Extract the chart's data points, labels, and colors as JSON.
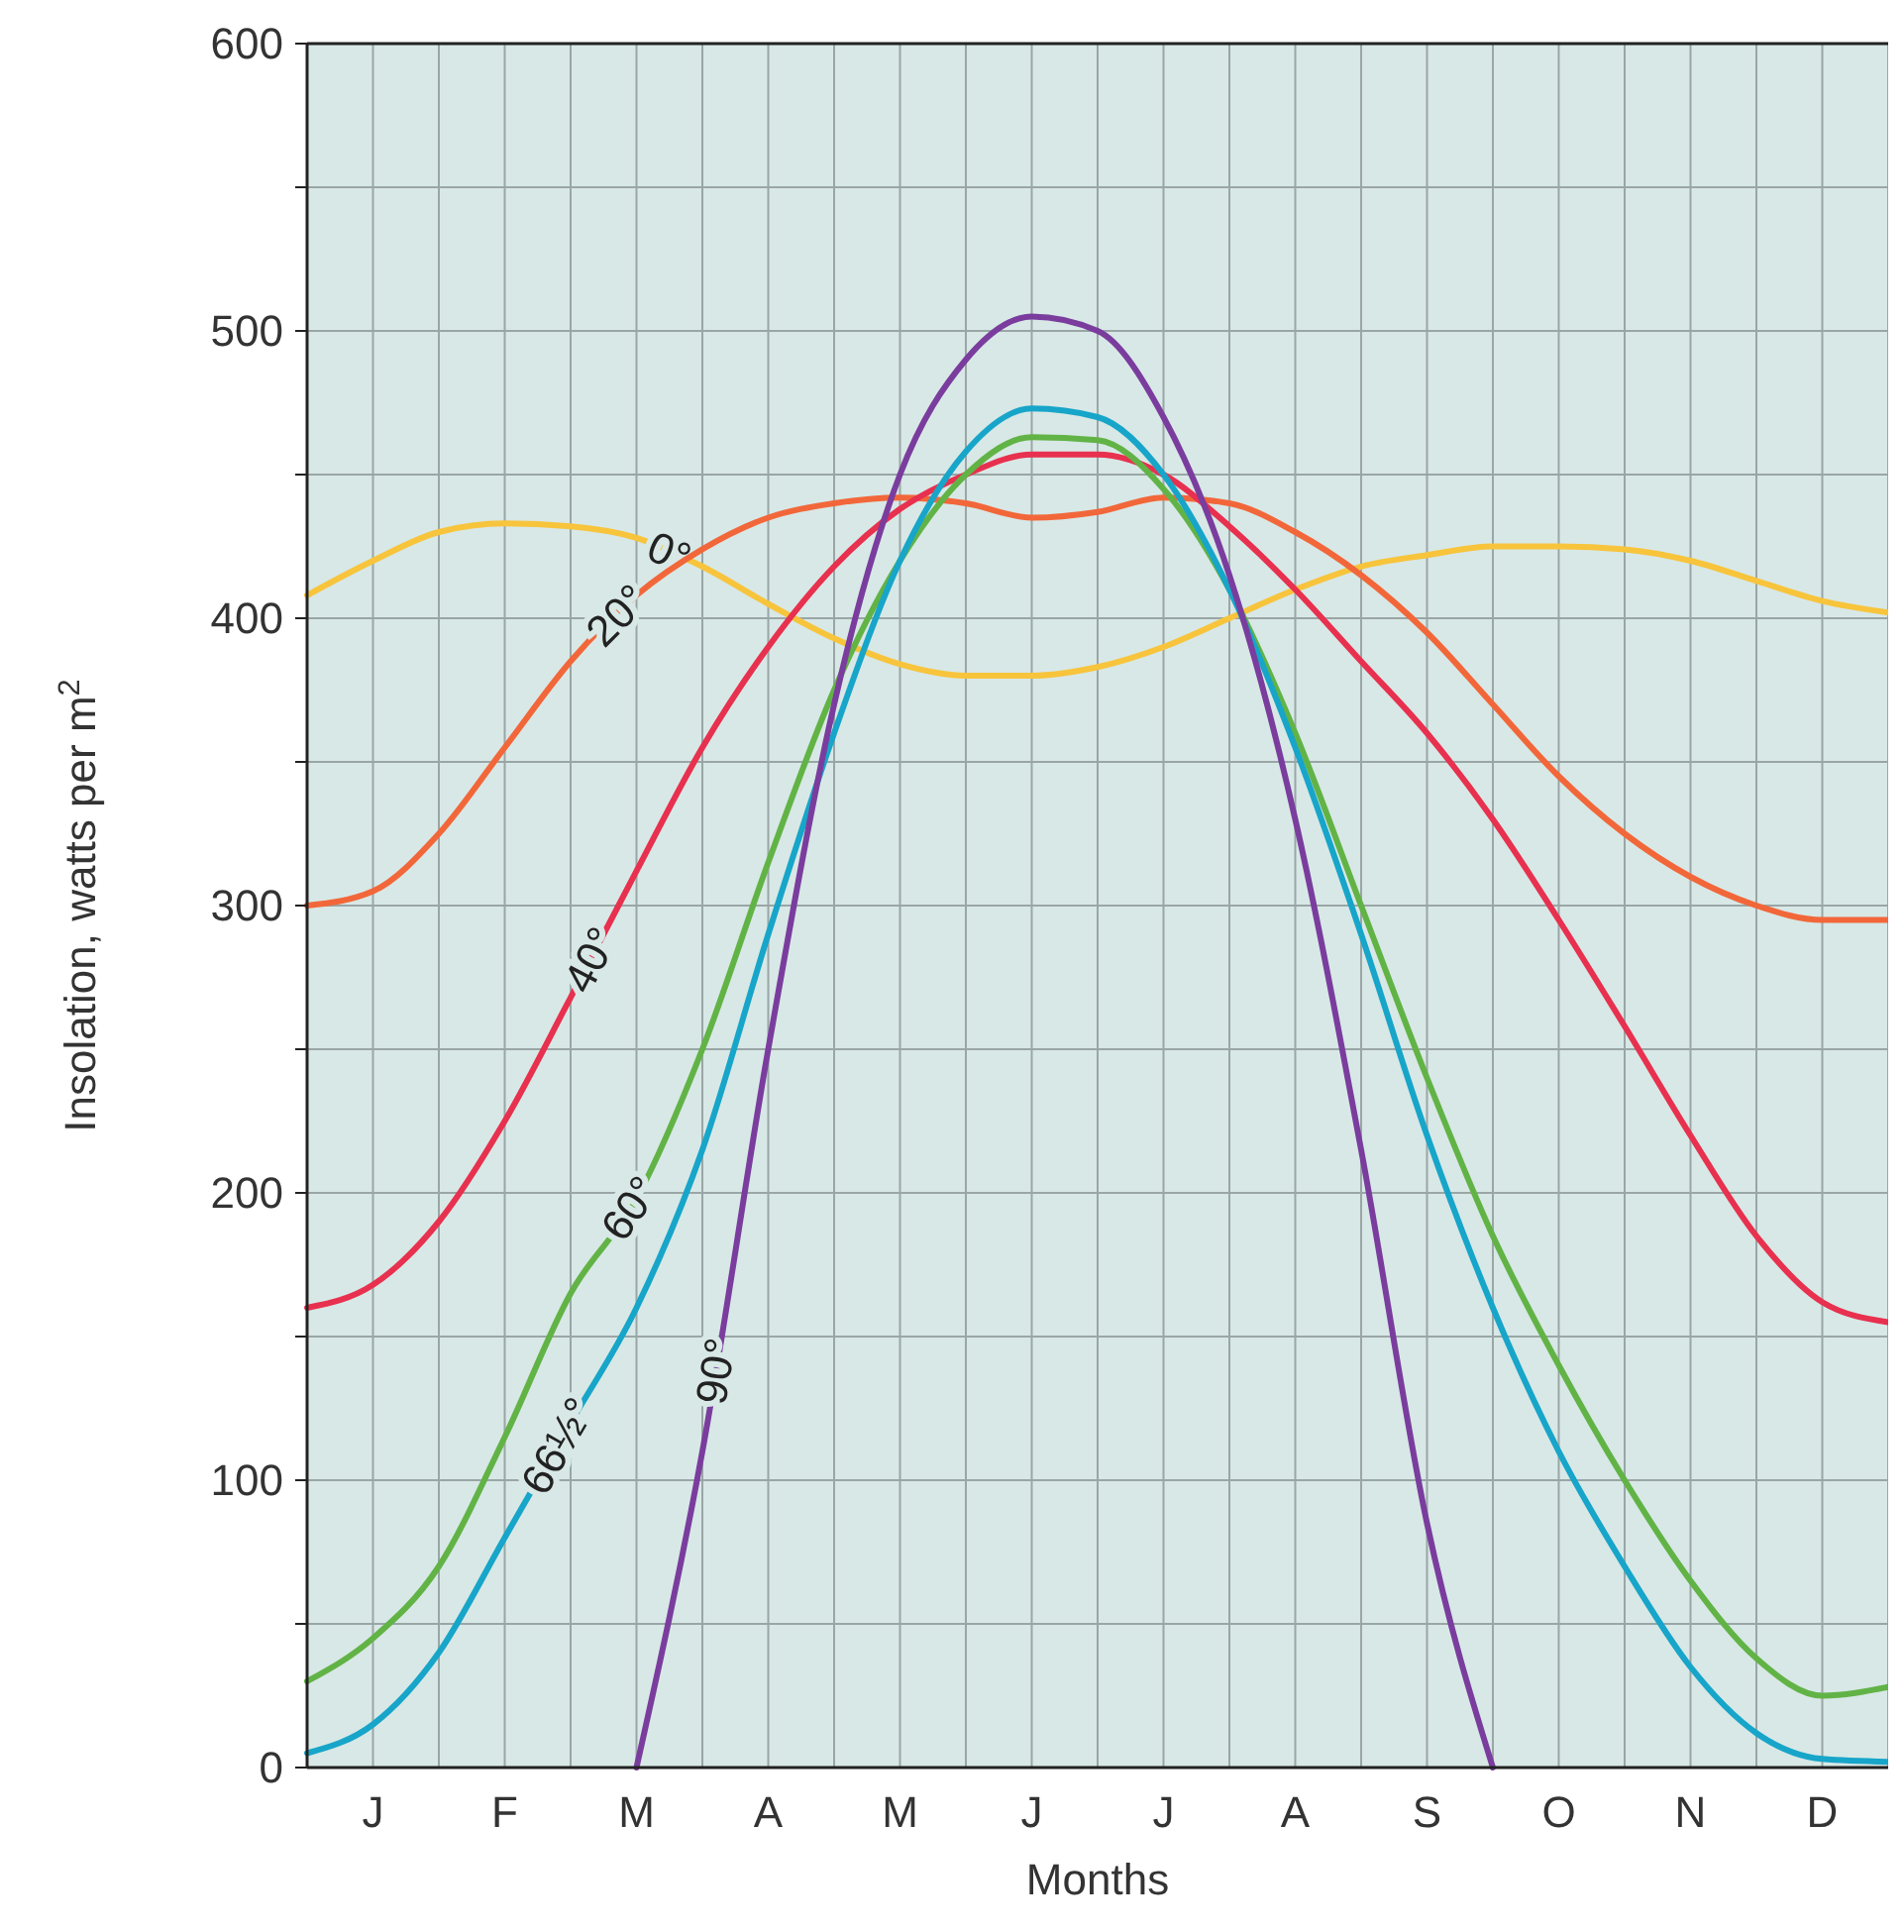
{
  "chart_data": {
    "type": "line",
    "xlabel": "Months",
    "ylabel": "Insolation, watts per m$^{2}$",
    "categories": [
      null,
      "J",
      null,
      "F",
      null,
      "M",
      null,
      "A",
      null,
      "M",
      null,
      "J",
      null,
      "J",
      null,
      "A",
      null,
      "S",
      null,
      "O",
      null,
      "N",
      null,
      "D",
      null
    ],
    "series": [
      {
        "name": "0°",
        "color": "#f7c43c",
        "values": [
          408,
          420,
          430,
          433,
          432,
          428,
          418,
          405,
          393,
          384,
          380,
          380,
          383,
          390,
          400,
          410,
          418,
          422,
          425,
          425,
          424,
          420,
          413,
          406,
          402
        ]
      },
      {
        "name": "20°",
        "color": "#f2673a",
        "values": [
          300,
          305,
          325,
          355,
          385,
          408,
          424,
          435,
          440,
          442,
          440,
          435,
          437,
          442,
          440,
          430,
          415,
          395,
          370,
          345,
          325,
          310,
          300,
          295,
          295
        ]
      },
      {
        "name": "40°",
        "color": "#e8304f",
        "values": [
          160,
          168,
          190,
          225,
          268,
          312,
          355,
          390,
          418,
          438,
          450,
          457,
          457,
          450,
          432,
          410,
          385,
          360,
          330,
          295,
          258,
          220,
          185,
          162,
          155
        ]
      },
      {
        "name": "60°",
        "color": "#62b346",
        "values": [
          30,
          45,
          70,
          115,
          165,
          198,
          250,
          315,
          375,
          420,
          450,
          463,
          462,
          445,
          410,
          360,
          300,
          240,
          185,
          140,
          100,
          65,
          38,
          25,
          28
        ]
      },
      {
        "name": "66½°",
        "color": "#17a5c9",
        "values": [
          5,
          15,
          40,
          80,
          120,
          160,
          215,
          290,
          360,
          420,
          458,
          473,
          470,
          450,
          410,
          355,
          290,
          220,
          160,
          110,
          70,
          35,
          12,
          3,
          2
        ]
      },
      {
        "name": "90°",
        "color": "#7a3d9e",
        "values": [
          null,
          null,
          null,
          null,
          null,
          0,
          110,
          250,
          370,
          450,
          490,
          505,
          500,
          470,
          415,
          330,
          215,
          85,
          0,
          null,
          null,
          null,
          null,
          null,
          null
        ]
      }
    ],
    "ylim": [
      0,
      600
    ],
    "yticks": [
      0,
      {
        "value": 50,
        "label": null
      },
      100,
      {
        "value": 150,
        "label": null
      },
      200,
      {
        "value": 250,
        "label": null
      },
      300,
      {
        "value": 350,
        "label": null
      },
      400,
      {
        "value": 450,
        "label": null
      },
      500,
      {
        "value": 550,
        "label": null
      },
      600
    ],
    "grid": true,
    "marker": "none",
    "line_style": "solid"
  }
}
